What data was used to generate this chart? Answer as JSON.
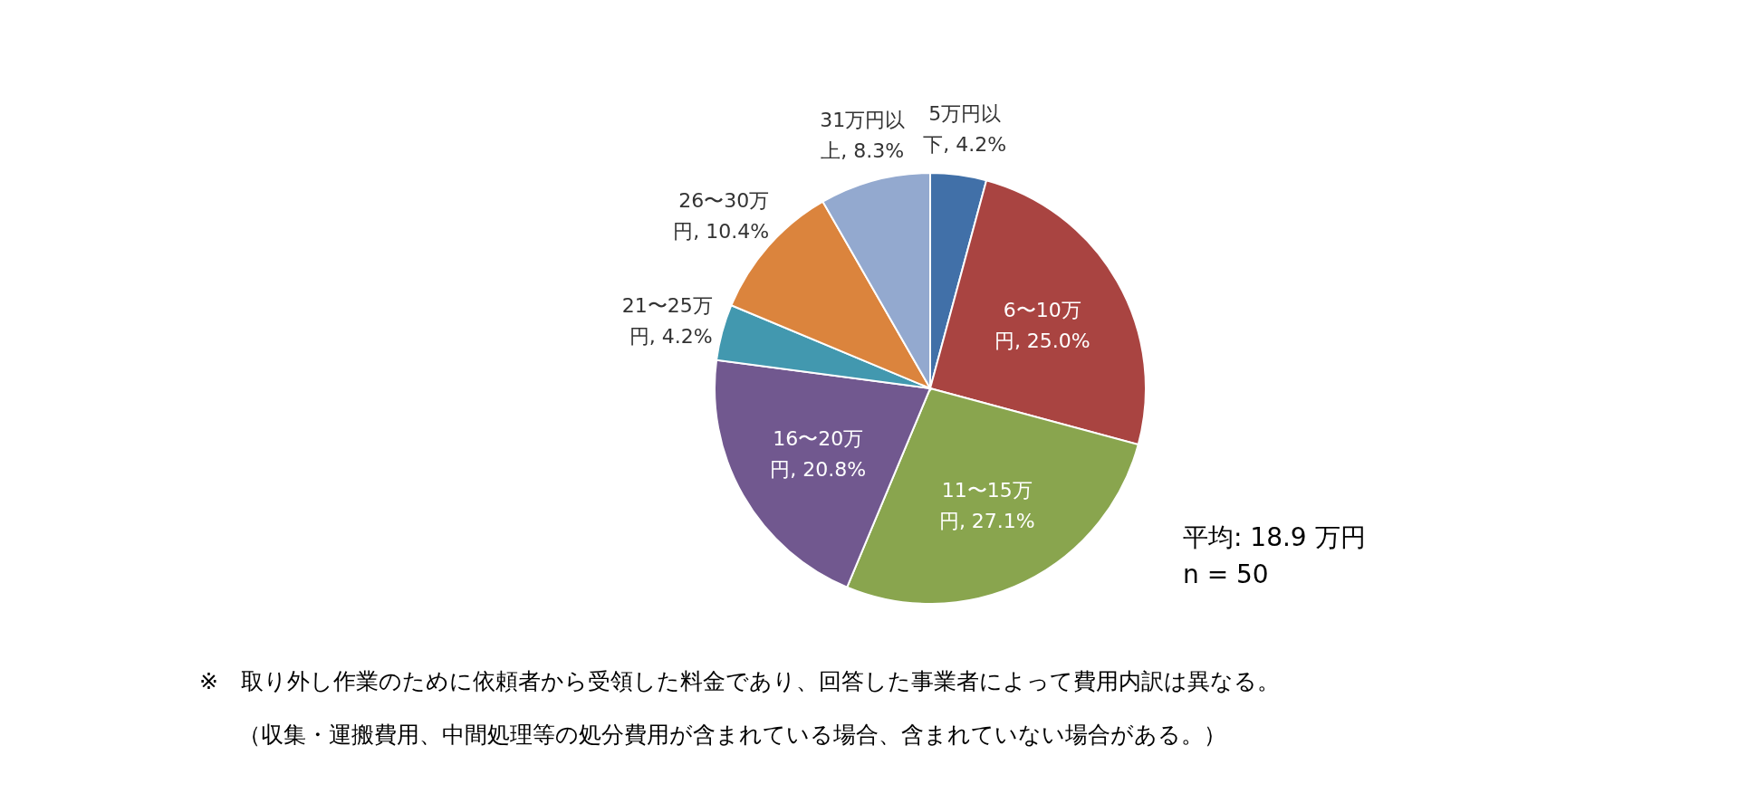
{
  "chart_data": {
    "type": "pie",
    "categories": [
      "5万円以下",
      "6〜10万円",
      "11〜15万円",
      "16〜20万円",
      "21〜25万円",
      "26〜30万円",
      "31万円以上"
    ],
    "values": [
      4.2,
      25.0,
      27.1,
      20.8,
      4.2,
      10.4,
      8.3
    ],
    "value_labels": [
      "4.2%",
      "25.0%",
      "27.1%",
      "20.8%",
      "4.2%",
      "10.4%",
      "8.3%"
    ],
    "colors": [
      "#4170a8",
      "#a94441",
      "#89a54e",
      "#71588f",
      "#4298af",
      "#db843d",
      "#93a9cf"
    ],
    "annotations": [
      "平均: 18.9 万円",
      "n = 50",
      "※　取り外し作業のために依頼者から受領した料金であり、回答した事業者によって費用内訳は異なる。",
      "（収集・運搬費用、中間処理等の処分費用が含まれている場合、含まれていない場合がある。）"
    ]
  }
}
